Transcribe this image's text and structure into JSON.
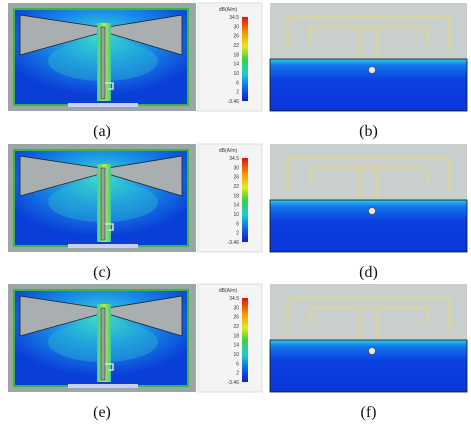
{
  "figure": {
    "panels": [
      {
        "label": "(a)"
      },
      {
        "label": "(b)"
      },
      {
        "label": "(c)"
      },
      {
        "label": "(d)"
      },
      {
        "label": "(e)"
      },
      {
        "label": "(f)"
      }
    ],
    "colorbar": {
      "title": "dB(A/m)",
      "ticks": [
        34.5,
        30,
        26,
        22,
        18,
        14,
        10,
        6,
        2,
        -3.46
      ]
    }
  }
}
